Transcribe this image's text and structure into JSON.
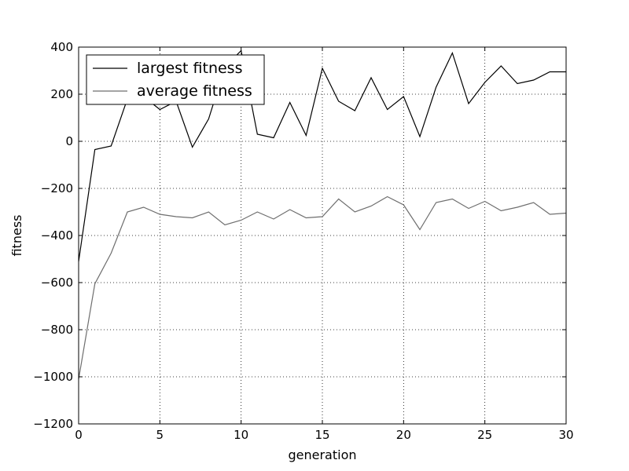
{
  "chart_data": {
    "type": "line",
    "xlabel": "generation",
    "ylabel": "fitness",
    "xlim": [
      0,
      30
    ],
    "ylim": [
      -1200,
      400
    ],
    "xticks": [
      0,
      5,
      10,
      15,
      20,
      25,
      30
    ],
    "xtick_labels": [
      "0",
      "5",
      "10",
      "15",
      "20",
      "25",
      "30"
    ],
    "yticks": [
      -1200,
      -1000,
      -800,
      -600,
      -400,
      -200,
      0,
      200,
      400
    ],
    "ytick_labels": [
      "−1200",
      "−1000",
      "−800",
      "−600",
      "−400",
      "−200",
      "0",
      "200",
      "400"
    ],
    "grid": true,
    "legend_position": "top-left",
    "x": [
      0,
      1,
      2,
      3,
      4,
      5,
      6,
      7,
      8,
      9,
      10,
      11,
      12,
      13,
      14,
      15,
      16,
      17,
      18,
      19,
      20,
      21,
      22,
      23,
      24,
      25,
      26,
      27,
      28,
      29,
      30
    ],
    "series": [
      {
        "name": "largest fitness",
        "color": "#000000",
        "values": [
          -510,
          -35,
          -20,
          180,
          190,
          135,
          170,
          -25,
          95,
          315,
          385,
          30,
          15,
          165,
          25,
          310,
          170,
          130,
          270,
          135,
          190,
          20,
          230,
          375,
          160,
          250,
          320,
          245,
          260,
          295,
          295
        ]
      },
      {
        "name": "average fitness",
        "color": "#6e6e6e",
        "values": [
          -1010,
          -605,
          -475,
          -300,
          -280,
          -310,
          -320,
          -325,
          -300,
          -355,
          -335,
          -300,
          -330,
          -290,
          -325,
          -320,
          -245,
          -300,
          -275,
          -235,
          -270,
          -375,
          -260,
          -245,
          -285,
          -255,
          -295,
          -280,
          -260,
          -310,
          -305
        ]
      }
    ]
  }
}
